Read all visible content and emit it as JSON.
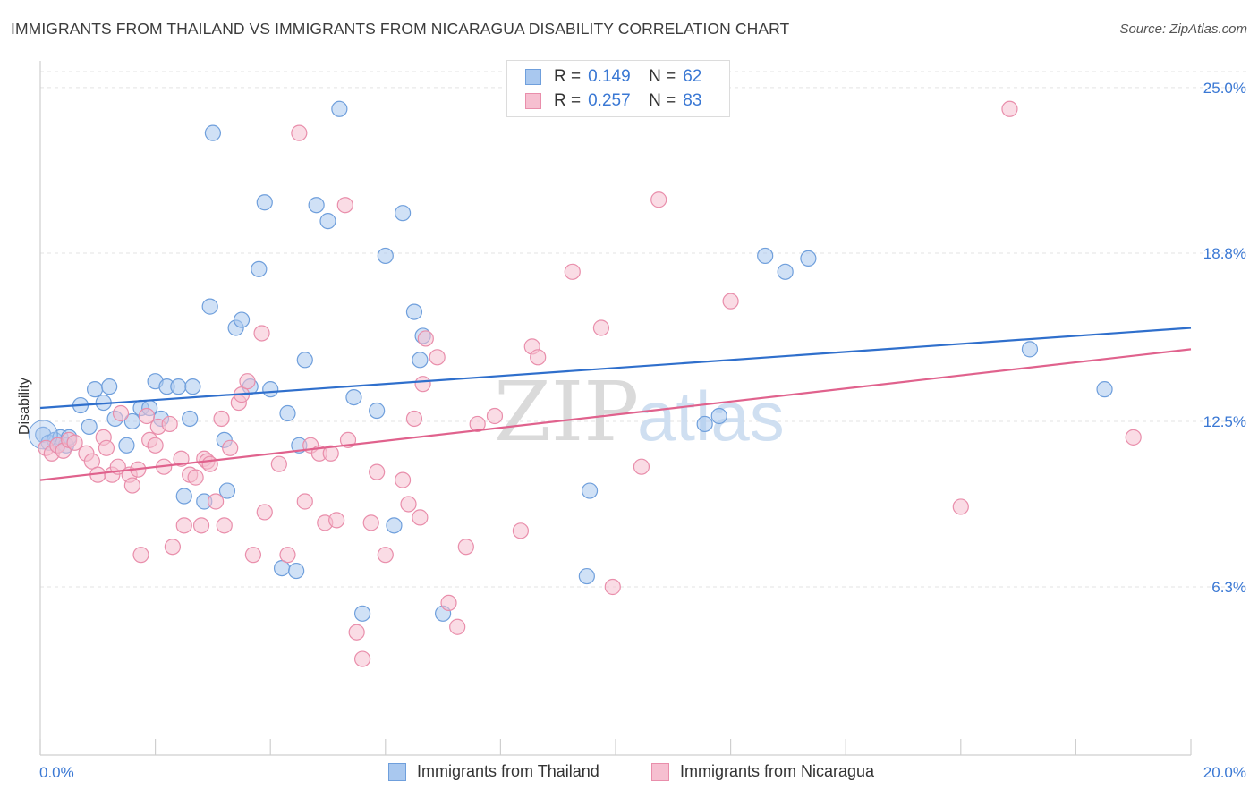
{
  "header": {
    "title": "IMMIGRANTS FROM THAILAND VS IMMIGRANTS FROM NICARAGUA DISABILITY CORRELATION CHART",
    "source": "Source: ZipAtlas.com"
  },
  "watermark": {
    "zip": "ZIP",
    "atlas": "atlas"
  },
  "legend": {
    "r_key": "R =",
    "n_key": "N =",
    "entries": [
      {
        "r": "0.149",
        "n": "62"
      },
      {
        "r": "0.257",
        "n": "83"
      }
    ]
  },
  "colors": {
    "thailand_fill": "#a9c8ef",
    "thailand_stroke": "#6f9fdc",
    "thailand_line": "#2f6fcc",
    "nicaragua_fill": "#f6bfd0",
    "nicaragua_stroke": "#e98eab",
    "nicaragua_line": "#e0628d",
    "axis_text": "#3a78d4",
    "grid": "#e3e3e3"
  },
  "chart_data": {
    "type": "scatter",
    "title": "IMMIGRANTS FROM THAILAND VS IMMIGRANTS FROM NICARAGUA DISABILITY CORRELATION CHART",
    "xlabel": "",
    "ylabel": "Disability",
    "xlim": [
      0,
      20
    ],
    "ylim": [
      0,
      25.6
    ],
    "x_tick_labels": [
      "0.0%",
      "20.0%"
    ],
    "y_ticks": [
      6.3,
      12.5,
      18.8,
      25.0
    ],
    "y_tick_labels": [
      "6.3%",
      "12.5%",
      "18.8%",
      "25.0%"
    ],
    "grid": true,
    "legend_position": "top-center",
    "series": [
      {
        "name": "Immigrants from Thailand",
        "r": 0.149,
        "n": 62,
        "trend": [
          [
            0,
            13.0
          ],
          [
            20,
            16.0
          ]
        ],
        "points": [
          [
            0.05,
            12.0
          ],
          [
            0.15,
            11.7
          ],
          [
            0.25,
            11.8
          ],
          [
            0.35,
            11.9
          ],
          [
            0.45,
            11.6
          ],
          [
            0.5,
            11.9
          ],
          [
            0.7,
            13.1
          ],
          [
            0.85,
            12.3
          ],
          [
            0.95,
            13.7
          ],
          [
            1.1,
            13.2
          ],
          [
            1.2,
            13.8
          ],
          [
            1.3,
            12.6
          ],
          [
            1.5,
            11.6
          ],
          [
            1.6,
            12.5
          ],
          [
            1.75,
            13.0
          ],
          [
            1.9,
            13.0
          ],
          [
            2.0,
            14.0
          ],
          [
            2.1,
            12.6
          ],
          [
            2.2,
            13.8
          ],
          [
            2.4,
            13.8
          ],
          [
            2.5,
            9.7
          ],
          [
            2.65,
            13.8
          ],
          [
            2.6,
            12.6
          ],
          [
            2.85,
            9.5
          ],
          [
            2.95,
            16.8
          ],
          [
            3.0,
            23.3
          ],
          [
            3.2,
            11.8
          ],
          [
            3.25,
            9.9
          ],
          [
            3.4,
            16.0
          ],
          [
            3.5,
            16.3
          ],
          [
            3.65,
            13.8
          ],
          [
            3.8,
            18.2
          ],
          [
            3.9,
            20.7
          ],
          [
            4.0,
            13.7
          ],
          [
            4.2,
            7.0
          ],
          [
            4.3,
            12.8
          ],
          [
            4.45,
            6.9
          ],
          [
            4.5,
            11.6
          ],
          [
            4.6,
            14.8
          ],
          [
            4.8,
            20.6
          ],
          [
            5.0,
            20.0
          ],
          [
            5.2,
            24.2
          ],
          [
            5.45,
            13.4
          ],
          [
            5.6,
            5.3
          ],
          [
            5.85,
            12.9
          ],
          [
            6.0,
            18.7
          ],
          [
            6.15,
            8.6
          ],
          [
            6.3,
            20.3
          ],
          [
            6.5,
            16.6
          ],
          [
            6.6,
            14.8
          ],
          [
            6.65,
            15.7
          ],
          [
            7.0,
            5.3
          ],
          [
            9.5,
            6.7
          ],
          [
            9.55,
            9.9
          ],
          [
            11.55,
            12.4
          ],
          [
            11.8,
            12.7
          ],
          [
            12.6,
            18.7
          ],
          [
            12.95,
            18.1
          ],
          [
            13.35,
            18.6
          ],
          [
            17.2,
            15.2
          ],
          [
            18.5,
            13.7
          ],
          [
            0.3,
            11.6
          ]
        ]
      },
      {
        "name": "Immigrants from Nicaragua",
        "r": 0.257,
        "n": 83,
        "trend": [
          [
            0,
            10.3
          ],
          [
            20,
            15.2
          ]
        ],
        "points": [
          [
            0.1,
            11.5
          ],
          [
            0.2,
            11.3
          ],
          [
            0.3,
            11.6
          ],
          [
            0.4,
            11.4
          ],
          [
            0.5,
            11.8
          ],
          [
            0.6,
            11.7
          ],
          [
            0.8,
            11.3
          ],
          [
            0.9,
            11.0
          ],
          [
            1.0,
            10.5
          ],
          [
            1.1,
            11.9
          ],
          [
            1.15,
            11.5
          ],
          [
            1.25,
            10.5
          ],
          [
            1.35,
            10.8
          ],
          [
            1.4,
            12.8
          ],
          [
            1.55,
            10.5
          ],
          [
            1.6,
            10.1
          ],
          [
            1.7,
            10.7
          ],
          [
            1.75,
            7.5
          ],
          [
            1.85,
            12.7
          ],
          [
            1.9,
            11.8
          ],
          [
            2.0,
            11.6
          ],
          [
            2.05,
            12.3
          ],
          [
            2.15,
            10.8
          ],
          [
            2.25,
            12.4
          ],
          [
            2.3,
            7.8
          ],
          [
            2.45,
            11.1
          ],
          [
            2.5,
            8.6
          ],
          [
            2.6,
            10.5
          ],
          [
            2.7,
            10.4
          ],
          [
            2.8,
            8.6
          ],
          [
            2.85,
            11.1
          ],
          [
            2.9,
            11.0
          ],
          [
            2.95,
            10.9
          ],
          [
            3.05,
            9.5
          ],
          [
            3.15,
            12.6
          ],
          [
            3.2,
            8.6
          ],
          [
            3.3,
            11.5
          ],
          [
            3.45,
            13.2
          ],
          [
            3.5,
            13.5
          ],
          [
            3.6,
            14.0
          ],
          [
            3.7,
            7.5
          ],
          [
            3.85,
            15.8
          ],
          [
            3.9,
            9.1
          ],
          [
            4.15,
            10.9
          ],
          [
            4.3,
            7.5
          ],
          [
            4.5,
            23.3
          ],
          [
            4.6,
            9.5
          ],
          [
            4.7,
            11.6
          ],
          [
            4.85,
            11.3
          ],
          [
            4.95,
            8.7
          ],
          [
            5.05,
            11.3
          ],
          [
            5.15,
            8.8
          ],
          [
            5.3,
            20.6
          ],
          [
            5.35,
            11.8
          ],
          [
            5.5,
            4.6
          ],
          [
            5.6,
            3.6
          ],
          [
            5.75,
            8.7
          ],
          [
            5.85,
            10.6
          ],
          [
            6.0,
            7.5
          ],
          [
            6.3,
            10.3
          ],
          [
            6.4,
            9.4
          ],
          [
            6.5,
            12.6
          ],
          [
            6.6,
            8.9
          ],
          [
            6.65,
            13.9
          ],
          [
            6.7,
            15.6
          ],
          [
            6.9,
            14.9
          ],
          [
            7.1,
            5.7
          ],
          [
            7.25,
            4.8
          ],
          [
            7.4,
            7.8
          ],
          [
            7.6,
            12.4
          ],
          [
            7.9,
            12.7
          ],
          [
            8.35,
            8.4
          ],
          [
            8.55,
            15.3
          ],
          [
            8.65,
            14.9
          ],
          [
            9.25,
            18.1
          ],
          [
            9.75,
            16.0
          ],
          [
            9.95,
            6.3
          ],
          [
            10.45,
            10.8
          ],
          [
            10.75,
            20.8
          ],
          [
            12.0,
            17.0
          ],
          [
            16.0,
            9.3
          ],
          [
            16.85,
            24.2
          ],
          [
            19.0,
            11.9
          ]
        ]
      }
    ]
  }
}
